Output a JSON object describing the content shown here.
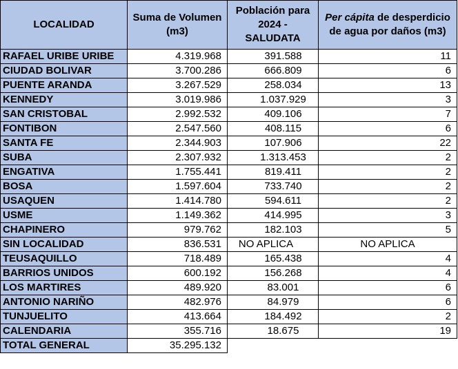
{
  "headers": {
    "localidad": "LOCALIDAD",
    "volumen": "Suma de Volumen (m3)",
    "poblacion": "Población para 2024 - SALUDATA",
    "percapita_italic": "Per cápita",
    "percapita_rest": " de desperdicio de agua por daños (m3)"
  },
  "rows": [
    {
      "localidad": "RAFAEL URIBE URIBE",
      "volumen": "4.319.968",
      "poblacion": "391.588",
      "percapita": "11"
    },
    {
      "localidad": "CIUDAD BOLIVAR",
      "volumen": "3.700.286",
      "poblacion": "666.809",
      "percapita": "6"
    },
    {
      "localidad": "PUENTE ARANDA",
      "volumen": "3.267.529",
      "poblacion": "258.034",
      "percapita": "13"
    },
    {
      "localidad": "KENNEDY",
      "volumen": "3.019.986",
      "poblacion": "1.037.929",
      "percapita": "3"
    },
    {
      "localidad": "SAN CRISTOBAL",
      "volumen": "2.992.532",
      "poblacion": "409.106",
      "percapita": "7"
    },
    {
      "localidad": "FONTIBON",
      "volumen": "2.547.560",
      "poblacion": "408.115",
      "percapita": "6"
    },
    {
      "localidad": "SANTA FE",
      "volumen": "2.344.903",
      "poblacion": "107.906",
      "percapita": "22"
    },
    {
      "localidad": "SUBA",
      "volumen": "2.307.932",
      "poblacion": "1.313.453",
      "percapita": "2"
    },
    {
      "localidad": "ENGATIVA",
      "volumen": "1.755.441",
      "poblacion": "819.411",
      "percapita": "2"
    },
    {
      "localidad": "BOSA",
      "volumen": "1.597.604",
      "poblacion": "733.740",
      "percapita": "2"
    },
    {
      "localidad": "USAQUEN",
      "volumen": "1.414.780",
      "poblacion": "594.611",
      "percapita": "2"
    },
    {
      "localidad": "USME",
      "volumen": "1.149.362",
      "poblacion": "414.995",
      "percapita": "3"
    },
    {
      "localidad": "CHAPINERO",
      "volumen": "979.762",
      "poblacion": "182.103",
      "percapita": "5"
    },
    {
      "localidad": "SIN LOCALIDAD",
      "volumen": "836.531",
      "poblacion": "NO APLICA",
      "percapita": "NO APLICA"
    },
    {
      "localidad": "TEUSAQUILLO",
      "volumen": "718.489",
      "poblacion": "165.438",
      "percapita": "4"
    },
    {
      "localidad": "BARRIOS UNIDOS",
      "volumen": "600.192",
      "poblacion": "156.268",
      "percapita": "4"
    },
    {
      "localidad": "LOS MARTIRES",
      "volumen": "489.920",
      "poblacion": "83.001",
      "percapita": "6"
    },
    {
      "localidad": "ANTONIO NARIÑO",
      "volumen": "482.976",
      "poblacion": "84.979",
      "percapita": "6"
    },
    {
      "localidad": "TUNJUELITO",
      "volumen": "413.664",
      "poblacion": "184.492",
      "percapita": "2"
    },
    {
      "localidad": "CALENDARIA",
      "volumen": "355.716",
      "poblacion": "18.675",
      "percapita": "19"
    }
  ],
  "total": {
    "localidad": "TOTAL GENERAL",
    "volumen": "35.295.132"
  },
  "colors": {
    "header_bg": "#b4c6e7",
    "border": "#000000"
  }
}
